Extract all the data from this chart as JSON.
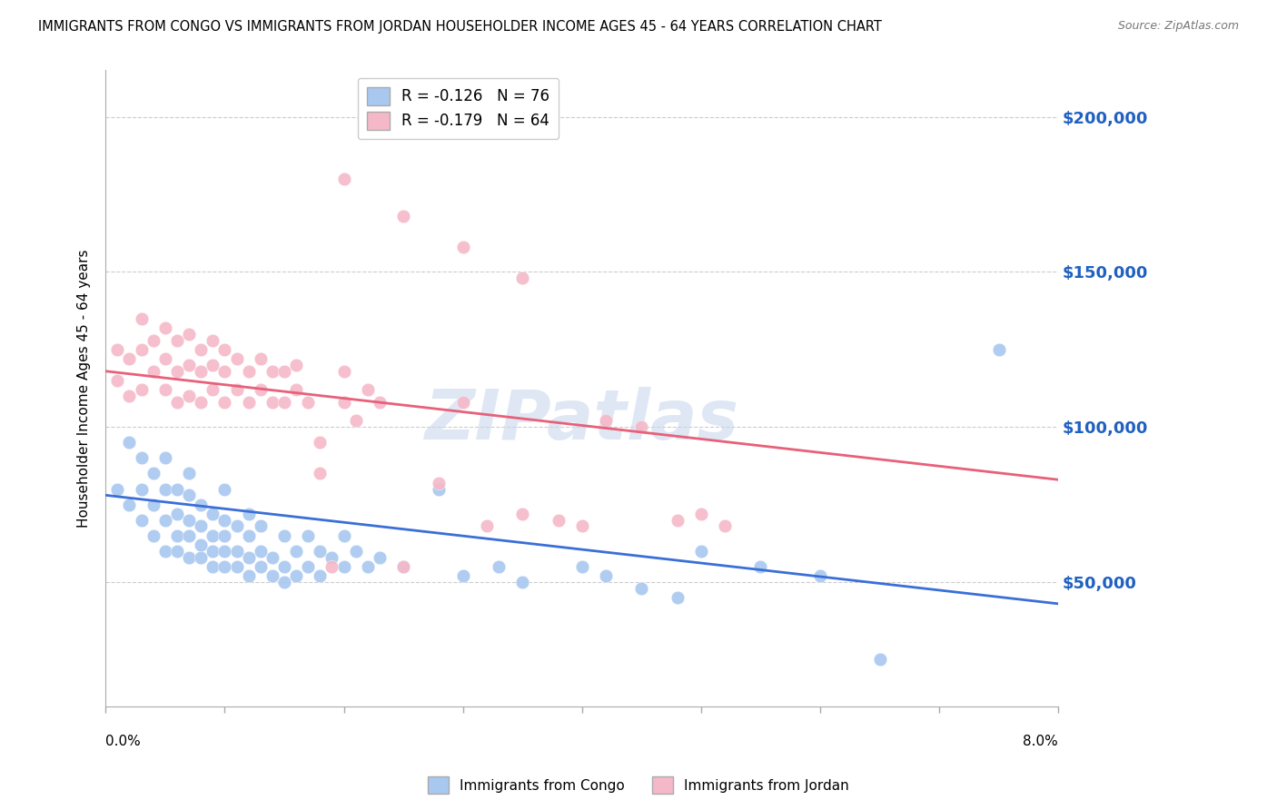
{
  "title": "IMMIGRANTS FROM CONGO VS IMMIGRANTS FROM JORDAN HOUSEHOLDER INCOME AGES 45 - 64 YEARS CORRELATION CHART",
  "source": "Source: ZipAtlas.com",
  "ylabel": "Householder Income Ages 45 - 64 years",
  "y_tick_labels": [
    "$50,000",
    "$100,000",
    "$150,000",
    "$200,000"
  ],
  "y_tick_values": [
    50000,
    100000,
    150000,
    200000
  ],
  "x_range": [
    0.0,
    0.08
  ],
  "y_range": [
    10000,
    215000
  ],
  "legend_entries": [
    {
      "label_r": "R = -0.126",
      "label_n": "N = 76",
      "color": "#a8c8f0"
    },
    {
      "label_r": "R = -0.179",
      "label_n": "N = 64",
      "color": "#f5b8c8"
    }
  ],
  "congo_color": "#a8c8f0",
  "jordan_color": "#f5b8c8",
  "congo_line_color": "#3a6fd8",
  "jordan_line_color": "#e8607a",
  "watermark": "ZIPatlas",
  "background_color": "#ffffff",
  "congo_trend": [
    78000,
    43000
  ],
  "jordan_trend": [
    118000,
    83000
  ],
  "congo_scatter_x": [
    0.001,
    0.002,
    0.002,
    0.003,
    0.003,
    0.003,
    0.004,
    0.004,
    0.004,
    0.005,
    0.005,
    0.005,
    0.005,
    0.006,
    0.006,
    0.006,
    0.006,
    0.007,
    0.007,
    0.007,
    0.007,
    0.007,
    0.008,
    0.008,
    0.008,
    0.008,
    0.009,
    0.009,
    0.009,
    0.009,
    0.01,
    0.01,
    0.01,
    0.01,
    0.01,
    0.011,
    0.011,
    0.011,
    0.012,
    0.012,
    0.012,
    0.012,
    0.013,
    0.013,
    0.013,
    0.014,
    0.014,
    0.015,
    0.015,
    0.015,
    0.016,
    0.016,
    0.017,
    0.017,
    0.018,
    0.018,
    0.019,
    0.02,
    0.02,
    0.021,
    0.022,
    0.023,
    0.025,
    0.028,
    0.03,
    0.033,
    0.035,
    0.04,
    0.042,
    0.045,
    0.048,
    0.05,
    0.055,
    0.06,
    0.065,
    0.075
  ],
  "congo_scatter_y": [
    80000,
    75000,
    95000,
    70000,
    80000,
    90000,
    65000,
    75000,
    85000,
    60000,
    70000,
    80000,
    90000,
    60000,
    65000,
    72000,
    80000,
    58000,
    65000,
    70000,
    78000,
    85000,
    58000,
    62000,
    68000,
    75000,
    55000,
    60000,
    65000,
    72000,
    55000,
    60000,
    65000,
    70000,
    80000,
    55000,
    60000,
    68000,
    52000,
    58000,
    65000,
    72000,
    55000,
    60000,
    68000,
    52000,
    58000,
    50000,
    55000,
    65000,
    52000,
    60000,
    55000,
    65000,
    52000,
    60000,
    58000,
    55000,
    65000,
    60000,
    55000,
    58000,
    55000,
    80000,
    52000,
    55000,
    50000,
    55000,
    52000,
    48000,
    45000,
    60000,
    55000,
    52000,
    25000,
    125000
  ],
  "jordan_scatter_x": [
    0.001,
    0.001,
    0.002,
    0.002,
    0.003,
    0.003,
    0.003,
    0.004,
    0.004,
    0.005,
    0.005,
    0.005,
    0.006,
    0.006,
    0.006,
    0.007,
    0.007,
    0.007,
    0.008,
    0.008,
    0.008,
    0.009,
    0.009,
    0.009,
    0.01,
    0.01,
    0.01,
    0.011,
    0.011,
    0.012,
    0.012,
    0.013,
    0.013,
    0.014,
    0.014,
    0.015,
    0.015,
    0.016,
    0.016,
    0.017,
    0.018,
    0.018,
    0.019,
    0.02,
    0.02,
    0.021,
    0.022,
    0.023,
    0.025,
    0.028,
    0.03,
    0.032,
    0.035,
    0.038,
    0.04,
    0.042,
    0.045,
    0.048,
    0.05,
    0.052,
    0.02,
    0.025,
    0.03,
    0.035
  ],
  "jordan_scatter_y": [
    115000,
    125000,
    110000,
    122000,
    112000,
    125000,
    135000,
    118000,
    128000,
    112000,
    122000,
    132000,
    108000,
    118000,
    128000,
    110000,
    120000,
    130000,
    108000,
    118000,
    125000,
    112000,
    120000,
    128000,
    108000,
    118000,
    125000,
    112000,
    122000,
    108000,
    118000,
    112000,
    122000,
    108000,
    118000,
    108000,
    118000,
    112000,
    120000,
    108000,
    85000,
    95000,
    55000,
    108000,
    118000,
    102000,
    112000,
    108000,
    55000,
    82000,
    108000,
    68000,
    72000,
    70000,
    68000,
    102000,
    100000,
    70000,
    72000,
    68000,
    180000,
    168000,
    158000,
    148000
  ]
}
